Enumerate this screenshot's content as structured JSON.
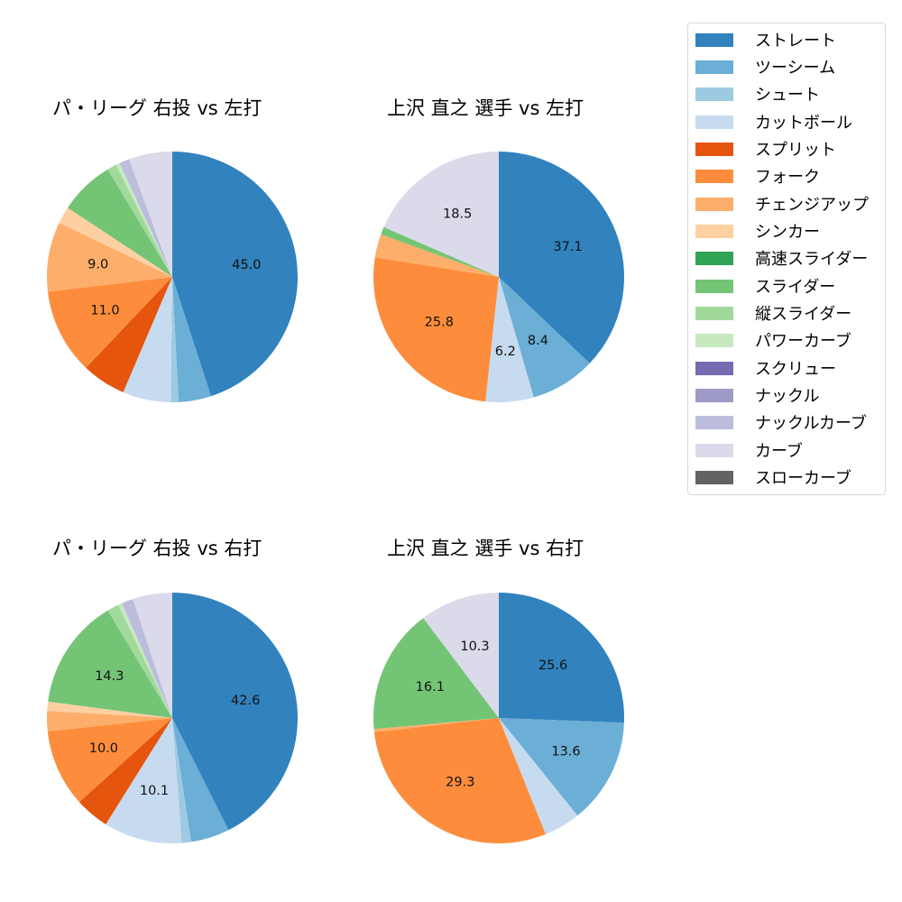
{
  "legend": {
    "items": [
      {
        "label": "ストレート",
        "color": "#3182bd"
      },
      {
        "label": "ツーシーム",
        "color": "#6baed6"
      },
      {
        "label": "シュート",
        "color": "#9ecae1"
      },
      {
        "label": "カットボール",
        "color": "#c6dbef"
      },
      {
        "label": "スプリット",
        "color": "#e6550d"
      },
      {
        "label": "フォーク",
        "color": "#fd8d3c"
      },
      {
        "label": "チェンジアップ",
        "color": "#fdae6b"
      },
      {
        "label": "シンカー",
        "color": "#fdd0a2"
      },
      {
        "label": "高速スライダー",
        "color": "#31a354"
      },
      {
        "label": "スライダー",
        "color": "#74c476"
      },
      {
        "label": "縦スライダー",
        "color": "#a1d99b"
      },
      {
        "label": "パワーカーブ",
        "color": "#c7e9c0"
      },
      {
        "label": "スクリュー",
        "color": "#756bb1"
      },
      {
        "label": "ナックル",
        "color": "#9e9ac8"
      },
      {
        "label": "ナックルカーブ",
        "color": "#bcbddc"
      },
      {
        "label": "カーブ",
        "color": "#dadaeb"
      },
      {
        "label": "スローカーブ",
        "color": "#636363"
      }
    ]
  },
  "chart_data": [
    {
      "type": "pie",
      "title": "パ・リーグ 右投 vs 左打",
      "start_angle": 90,
      "direction": "clockwise",
      "slices": [
        {
          "label": "ストレート",
          "value": 45.0,
          "shown": "45.0"
        },
        {
          "label": "ツーシーム",
          "value": 4.2
        },
        {
          "label": "シュート",
          "value": 1.0
        },
        {
          "label": "カットボール",
          "value": 6.2
        },
        {
          "label": "スプリット",
          "value": 5.7
        },
        {
          "label": "フォーク",
          "value": 11.0,
          "shown": "11.0"
        },
        {
          "label": "チェンジアップ",
          "value": 9.0,
          "shown": "9.0"
        },
        {
          "label": "シンカー",
          "value": 2.2
        },
        {
          "label": "スライダー",
          "value": 7.1
        },
        {
          "label": "縦スライダー",
          "value": 1.2
        },
        {
          "label": "パワーカーブ",
          "value": 0.5
        },
        {
          "label": "ナックルカーブ",
          "value": 1.3
        },
        {
          "label": "カーブ",
          "value": 5.6
        }
      ]
    },
    {
      "type": "pie",
      "title": "上沢 直之 選手 vs 左打",
      "start_angle": 90,
      "direction": "clockwise",
      "slices": [
        {
          "label": "ストレート",
          "value": 37.1,
          "shown": "37.1"
        },
        {
          "label": "ツーシーム",
          "value": 8.4,
          "shown": "8.4"
        },
        {
          "label": "カットボール",
          "value": 6.2,
          "shown": "6.2"
        },
        {
          "label": "フォーク",
          "value": 25.8,
          "shown": "25.8"
        },
        {
          "label": "チェンジアップ",
          "value": 3.0
        },
        {
          "label": "スライダー",
          "value": 1.0
        },
        {
          "label": "カーブ",
          "value": 18.5,
          "shown": "18.5"
        }
      ]
    },
    {
      "type": "pie",
      "title": "パ・リーグ 右投 vs 右打",
      "start_angle": 90,
      "direction": "clockwise",
      "slices": [
        {
          "label": "ストレート",
          "value": 42.6,
          "shown": "42.6"
        },
        {
          "label": "ツーシーム",
          "value": 5.0
        },
        {
          "label": "シュート",
          "value": 1.2
        },
        {
          "label": "カットボール",
          "value": 10.1,
          "shown": "10.1"
        },
        {
          "label": "スプリット",
          "value": 4.4
        },
        {
          "label": "フォーク",
          "value": 10.0,
          "shown": "10.0"
        },
        {
          "label": "チェンジアップ",
          "value": 2.6
        },
        {
          "label": "シンカー",
          "value": 1.2
        },
        {
          "label": "スライダー",
          "value": 14.3,
          "shown": "14.3"
        },
        {
          "label": "縦スライダー",
          "value": 1.5
        },
        {
          "label": "パワーカーブ",
          "value": 0.5
        },
        {
          "label": "ナックルカーブ",
          "value": 1.5
        },
        {
          "label": "カーブ",
          "value": 5.1
        }
      ]
    },
    {
      "type": "pie",
      "title": "上沢 直之 選手 vs 右打",
      "start_angle": 90,
      "direction": "clockwise",
      "slices": [
        {
          "label": "ストレート",
          "value": 25.6,
          "shown": "25.6"
        },
        {
          "label": "ツーシーム",
          "value": 13.6,
          "shown": "13.6"
        },
        {
          "label": "カットボール",
          "value": 4.7
        },
        {
          "label": "フォーク",
          "value": 29.3,
          "shown": "29.3"
        },
        {
          "label": "チェンジアップ",
          "value": 0.4
        },
        {
          "label": "スライダー",
          "value": 16.1,
          "shown": "16.1"
        },
        {
          "label": "カーブ",
          "value": 10.3,
          "shown": "10.3"
        }
      ]
    }
  ]
}
